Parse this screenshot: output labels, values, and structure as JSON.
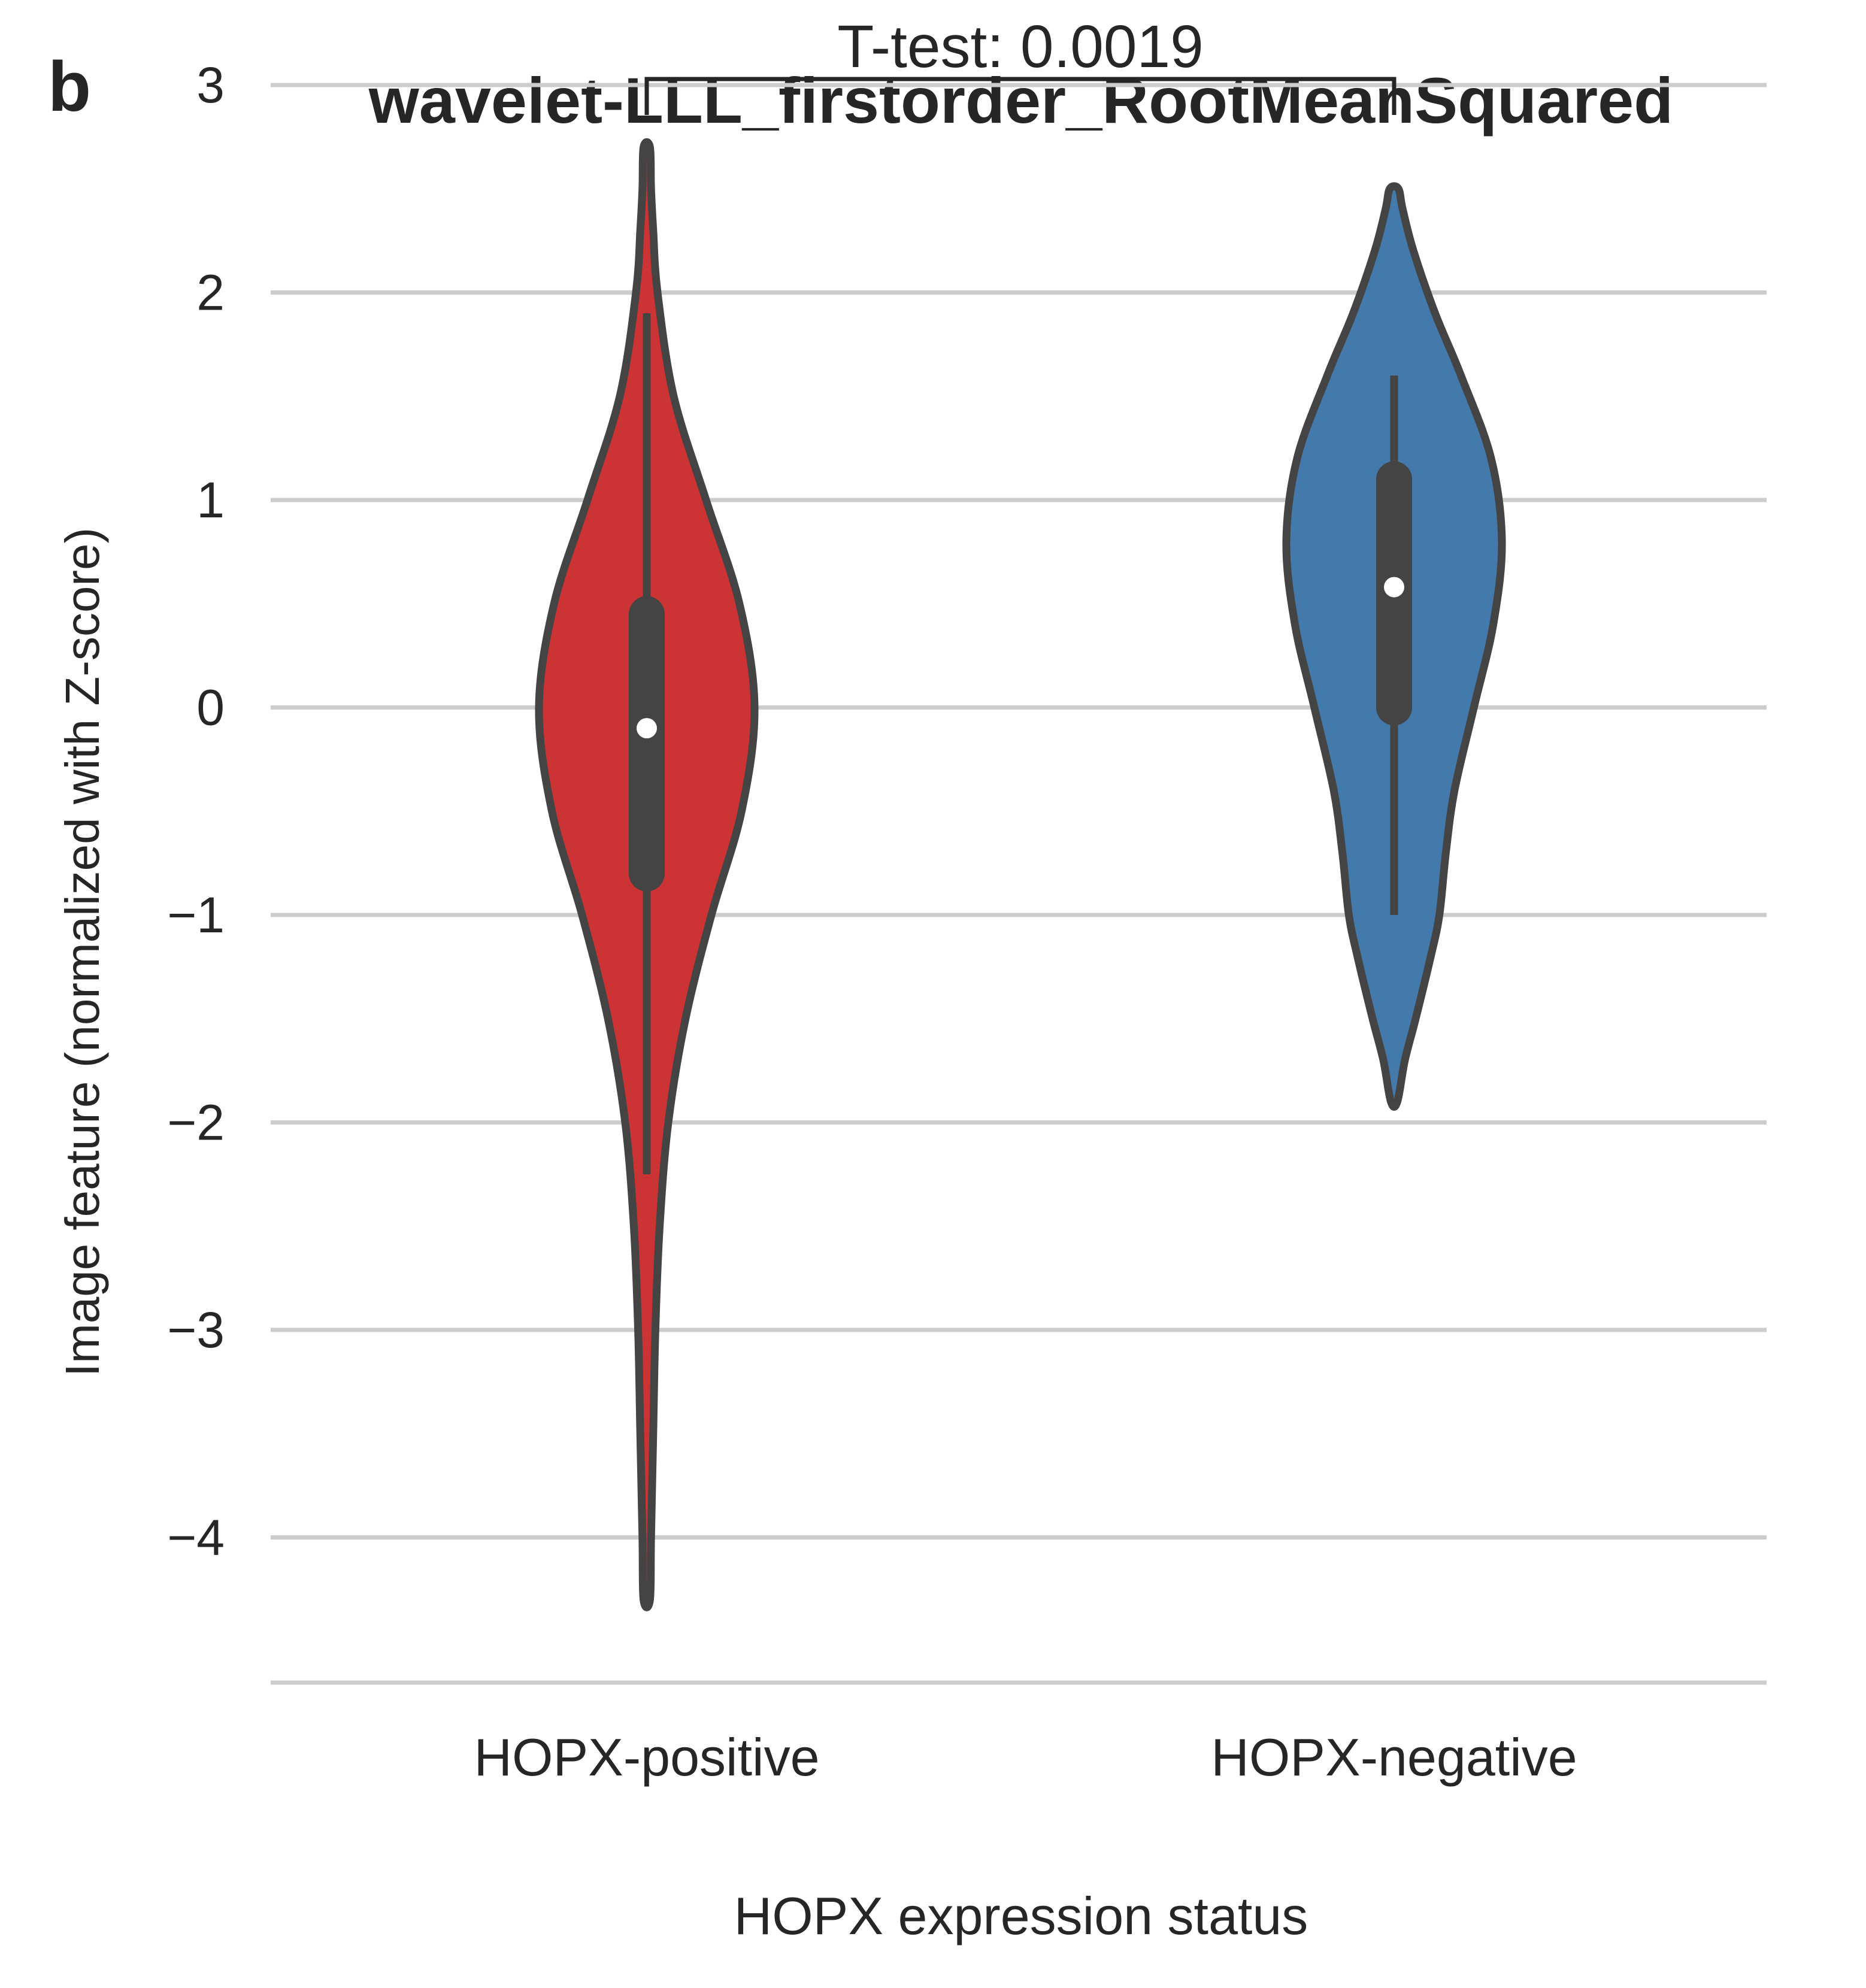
{
  "panel_label": "b",
  "chart_data": {
    "type": "violin",
    "title": "wavelet-LLL_firstorder_RootMeanSquared",
    "xlabel": "HOPX expression status",
    "ylabel": "Image feature (normalized with Z-score)",
    "yticks": [
      3,
      2,
      1,
      0,
      -1,
      -2,
      -3,
      -4
    ],
    "ytick_labels": [
      "3",
      "2",
      "1",
      "0",
      "−1",
      "−2",
      "−3",
      "−4"
    ],
    "ylim": [
      -4.7,
      3.15
    ],
    "grid": "horizontal",
    "categories": [
      "HOPX-positive",
      "HOPX-negative"
    ],
    "annotation": {
      "text": "T-test: 0.0019",
      "between": [
        "HOPX-positive",
        "HOPX-negative"
      ],
      "y": 3.0
    },
    "groups": [
      {
        "category": "HOPX-positive",
        "color": "#cb3335",
        "min": -4.3,
        "max": 2.7,
        "q1": -0.8,
        "median": -0.1,
        "q3": 0.45,
        "whisker_low": -2.25,
        "whisker_high": 1.9,
        "density_y": [
          -4.3,
          -4.0,
          -3.5,
          -3.0,
          -2.5,
          -2.0,
          -1.5,
          -1.0,
          -0.5,
          0.0,
          0.5,
          1.0,
          1.5,
          2.0,
          2.3,
          2.5,
          2.7
        ],
        "density_w": [
          0.03,
          0.04,
          0.06,
          0.08,
          0.12,
          0.2,
          0.36,
          0.6,
          0.88,
          1.0,
          0.86,
          0.55,
          0.25,
          0.1,
          0.06,
          0.04,
          0.03
        ]
      },
      {
        "category": "HOPX-negative",
        "color": "#4479ab",
        "min": -1.9,
        "max": 2.5,
        "q1": 0.0,
        "median": 0.58,
        "q3": 1.1,
        "whisker_low": -1.0,
        "whisker_high": 1.6,
        "density_y": [
          -1.9,
          -1.7,
          -1.5,
          -1.2,
          -1.0,
          -0.7,
          -0.4,
          0.0,
          0.4,
          0.8,
          1.2,
          1.6,
          1.9,
          2.2,
          2.4,
          2.5
        ],
        "density_w": [
          0.03,
          0.1,
          0.2,
          0.34,
          0.42,
          0.48,
          0.56,
          0.74,
          0.92,
          1.0,
          0.9,
          0.62,
          0.38,
          0.18,
          0.08,
          0.04
        ]
      }
    ]
  }
}
